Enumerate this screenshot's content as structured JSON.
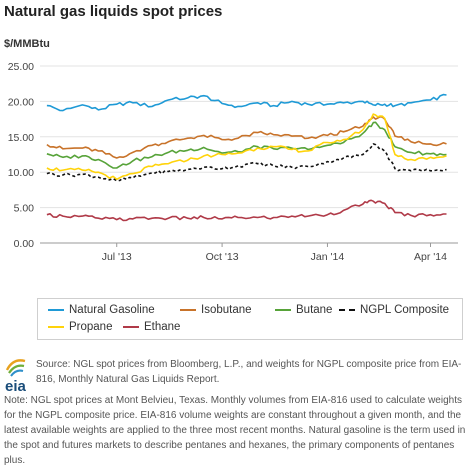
{
  "header": {
    "title": "Natural gas liquids spot prices",
    "unit": "$/MMBtu"
  },
  "logo": {
    "text": "eia"
  },
  "footer": {
    "source": "Source: NGL spot prices from Bloomberg, L.P., and weights for NGPL composite price from EIA-816, Monthly Natural Gas Liquids Report.",
    "note": "Note: NGL spot prices at Mont Belvieu, Texas. Monthly volumes from EIA-816 used to calculate weights for the NGPL composite price. EIA-816 volume weights are constant throughout a given month, and the latest available weights are applied to the three most recent months. Natural gasoline is the term used in the spot and futures markets to describe pentanes and hexanes, the primary components of pentanes plus."
  },
  "chart_data": {
    "type": "line",
    "title": "Natural gas liquids spot prices",
    "ylabel": "$/MMBtu",
    "ylim": [
      0,
      25
    ],
    "yticks": [
      "0.00",
      "5.00",
      "10.00",
      "15.00",
      "20.00",
      "25.00"
    ],
    "xticks": [
      "Jul '13",
      "Oct '13",
      "Jan '14",
      "Apr '14"
    ],
    "xtick_dates": [
      "2013-07-01",
      "2013-10-01",
      "2014-01-01",
      "2014-04-01"
    ],
    "x": [
      "2013-05-01",
      "2013-05-15",
      "2013-06-01",
      "2013-06-15",
      "2013-07-01",
      "2013-07-15",
      "2013-08-01",
      "2013-08-15",
      "2013-09-01",
      "2013-09-15",
      "2013-10-01",
      "2013-10-15",
      "2013-11-01",
      "2013-11-15",
      "2013-12-01",
      "2013-12-15",
      "2014-01-01",
      "2014-01-15",
      "2014-02-01",
      "2014-02-10",
      "2014-02-20",
      "2014-03-01",
      "2014-03-15",
      "2014-04-01",
      "2014-04-15"
    ],
    "grid": true,
    "legend_position": "bottom",
    "series": [
      {
        "name": "Natural Gasoline",
        "color": "#1f9ad6",
        "dash": false,
        "values": [
          19.4,
          18.7,
          19.5,
          18.8,
          19.6,
          19.8,
          19.3,
          20.2,
          20.5,
          20.8,
          19.7,
          19.3,
          19.8,
          19.4,
          20.0,
          19.6,
          19.6,
          19.8,
          20.0,
          19.5,
          19.6,
          19.4,
          19.8,
          20.2,
          20.9
        ]
      },
      {
        "name": "Isobutane",
        "color": "#c8732a",
        "dash": false,
        "values": [
          13.9,
          13.3,
          13.4,
          13.0,
          12.0,
          12.8,
          13.8,
          14.3,
          14.8,
          15.2,
          14.6,
          14.8,
          15.6,
          15.3,
          15.1,
          14.8,
          15.2,
          15.7,
          16.5,
          17.8,
          17.5,
          15.1,
          14.3,
          14.0,
          14.0
        ]
      },
      {
        "name": "Butane",
        "color": "#57a339",
        "dash": false,
        "values": [
          12.6,
          12.1,
          12.3,
          11.8,
          10.6,
          11.6,
          12.2,
          12.8,
          13.1,
          13.5,
          12.7,
          12.9,
          13.6,
          13.3,
          13.4,
          13.2,
          13.8,
          14.2,
          15.5,
          17.0,
          16.0,
          13.6,
          12.8,
          12.6,
          12.5
        ]
      },
      {
        "name": "NGPL Composite",
        "color": "#111111",
        "dash": true,
        "values": [
          9.8,
          9.6,
          9.7,
          9.3,
          8.8,
          9.2,
          9.9,
          10.1,
          10.4,
          10.7,
          10.5,
          10.9,
          11.2,
          10.9,
          10.7,
          10.8,
          11.5,
          12.0,
          12.5,
          14.0,
          13.0,
          10.5,
          10.2,
          10.2,
          10.4
        ]
      },
      {
        "name": "Propane",
        "color": "#ffd30a",
        "dash": false,
        "values": [
          10.6,
          10.3,
          10.3,
          10.0,
          9.0,
          9.8,
          10.8,
          11.2,
          11.7,
          12.3,
          12.5,
          12.7,
          13.4,
          13.6,
          13.2,
          13.0,
          14.2,
          14.6,
          16.0,
          18.2,
          17.6,
          12.5,
          11.8,
          12.1,
          12.3
        ]
      },
      {
        "name": "Ethane",
        "color": "#b03a48",
        "dash": false,
        "values": [
          4.0,
          3.8,
          3.8,
          3.5,
          3.3,
          3.4,
          3.5,
          3.5,
          3.5,
          3.6,
          3.4,
          3.6,
          3.6,
          3.6,
          3.8,
          3.8,
          4.0,
          4.6,
          5.5,
          5.9,
          5.6,
          4.3,
          3.9,
          4.0,
          4.1
        ]
      }
    ]
  }
}
